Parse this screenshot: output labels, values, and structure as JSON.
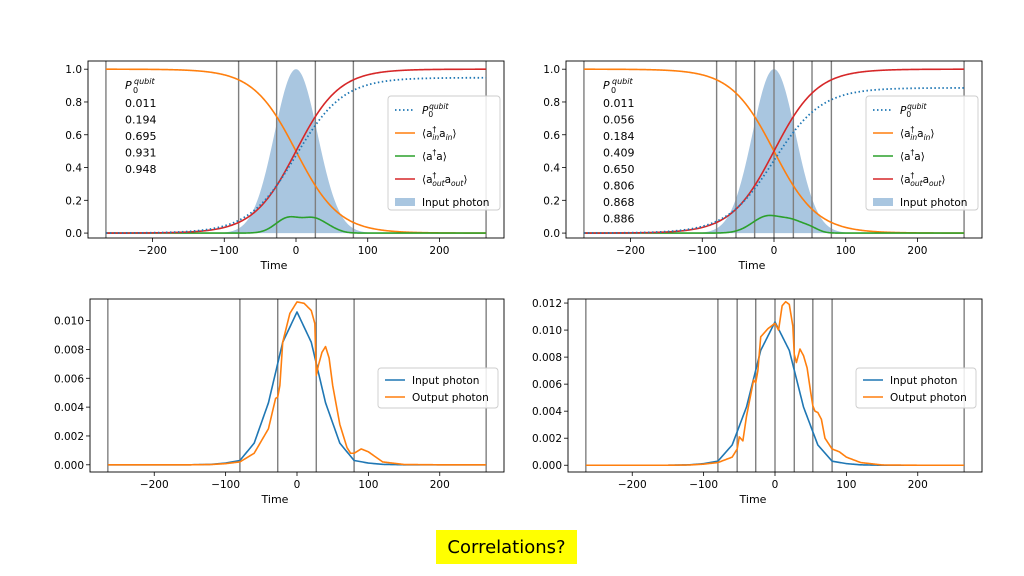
{
  "caption": "Correlations?",
  "colors": {
    "blue": "#1f77b4",
    "orange": "#ff7f0e",
    "green": "#2ca02c",
    "red": "#d62728",
    "fill": "#a9c6e0",
    "grid_line": "#7f7f7f"
  },
  "chart_data": [
    {
      "type": "line",
      "panel": "top-left",
      "xlabel": "Time",
      "ylabel": "",
      "xlim": [
        -290,
        290
      ],
      "ylim": [
        -0.03,
        1.05
      ],
      "xticks": [
        -200,
        -100,
        0,
        100,
        200
      ],
      "xtick_labels": [
        "−200",
        "−100",
        "0",
        "100",
        "200"
      ],
      "yticks": [
        0.0,
        0.2,
        0.4,
        0.6,
        0.8,
        1.0
      ],
      "ytick_labels": [
        "0.0",
        "0.2",
        "0.4",
        "0.6",
        "0.8",
        "1.0"
      ],
      "vlines": [
        -265,
        -80,
        -27,
        27,
        80,
        265
      ],
      "pulse": {
        "center": 0,
        "sigma": 30,
        "peak": 1.0
      },
      "series": [
        {
          "name": "P_0^qubit",
          "style": "dotted",
          "kind": "out",
          "scale": 0.948,
          "k": 33
        },
        {
          "name": "<a_in^dag a_in>",
          "style": "solid",
          "kind": "in",
          "k": 30
        },
        {
          "name": "<a^dag a>",
          "style": "solid",
          "kind": "cav",
          "peaks": [
            [
              -10,
              18,
              0.095
            ],
            [
              24,
              14,
              0.07
            ],
            [
              45,
              14,
              0.03
            ]
          ]
        },
        {
          "name": "<a_out^dag a_out>",
          "style": "solid",
          "kind": "out",
          "scale": 1.0,
          "k": 30
        }
      ],
      "annotations": {
        "header": "P",
        "values": [
          "0.011",
          "0.194",
          "0.695",
          "0.931",
          "0.948"
        ]
      },
      "legend": {
        "location": "center-right",
        "entries": [
          {
            "kind": "math",
            "main": "P",
            "sub": "0",
            "sup": "qubit"
          },
          {
            "kind": "math",
            "main": "⟨a",
            "sup": "†",
            "mid": "a",
            "sub2": "in",
            "sub1": "in"
          },
          {
            "kind": "math",
            "main": "⟨a",
            "sup": "†",
            "mid": "a"
          },
          {
            "kind": "math",
            "main": "⟨a",
            "sup": "†",
            "mid": "a",
            "sub2": "out",
            "sub1": "out"
          },
          {
            "kind": "text",
            "text": "Input photon"
          }
        ]
      }
    },
    {
      "type": "line",
      "panel": "top-right",
      "xlabel": "Time",
      "ylabel": "",
      "xlim": [
        -290,
        290
      ],
      "ylim": [
        -0.03,
        1.05
      ],
      "xticks": [
        -200,
        -100,
        0,
        100,
        200
      ],
      "xtick_labels": [
        "−200",
        "−100",
        "0",
        "100",
        "200"
      ],
      "yticks": [
        0.0,
        0.2,
        0.4,
        0.6,
        0.8,
        1.0
      ],
      "ytick_labels": [
        "0.0",
        "0.2",
        "0.4",
        "0.6",
        "0.8",
        "1.0"
      ],
      "vlines": [
        -265,
        -80,
        -53,
        -27,
        0,
        27,
        53,
        80,
        265
      ],
      "pulse": {
        "center": 0,
        "sigma": 30,
        "peak": 1.0
      },
      "series": [
        {
          "name": "P_0^qubit",
          "style": "dotted",
          "kind": "out",
          "scale": 0.886,
          "k": 33
        },
        {
          "name": "<a_in^dag a_in>",
          "style": "solid",
          "kind": "in",
          "k": 30
        },
        {
          "name": "<a^dag a>",
          "style": "solid",
          "kind": "cav",
          "peaks": [
            [
              -8,
              22,
              0.105
            ],
            [
              27,
              14,
              0.05
            ],
            [
              50,
              12,
              0.03
            ]
          ]
        },
        {
          "name": "<a_out^dag a_out>",
          "style": "solid",
          "kind": "out",
          "scale": 1.0,
          "k": 30
        }
      ],
      "annotations": {
        "header": "P",
        "values": [
          "0.011",
          "0.056",
          "0.184",
          "0.409",
          "0.650",
          "0.806",
          "0.868",
          "0.886"
        ]
      },
      "legend": {
        "location": "center-right",
        "entries": [
          {
            "kind": "math",
            "main": "P",
            "sub": "0",
            "sup": "qubit"
          },
          {
            "kind": "math",
            "main": "⟨a",
            "sup": "†",
            "mid": "a",
            "sub2": "in",
            "sub1": "in"
          },
          {
            "kind": "math",
            "main": "⟨a",
            "sup": "†",
            "mid": "a"
          },
          {
            "kind": "math",
            "main": "⟨a",
            "sup": "†",
            "mid": "a",
            "sub2": "out",
            "sub1": "out"
          },
          {
            "kind": "text",
            "text": "Input photon"
          }
        ]
      }
    },
    {
      "type": "line",
      "panel": "bottom-left",
      "xlabel": "Time",
      "ylabel": "",
      "xlim": [
        -290,
        290
      ],
      "ylim": [
        -0.0005,
        0.0115
      ],
      "xticks": [
        -200,
        -100,
        0,
        100,
        200
      ],
      "xtick_labels": [
        "−200",
        "−100",
        "0",
        "100",
        "200"
      ],
      "yticks": [
        0.0,
        0.002,
        0.004,
        0.006,
        0.008,
        0.01
      ],
      "ytick_labels": [
        "0.000",
        "0.002",
        "0.004",
        "0.006",
        "0.008",
        "0.010"
      ],
      "vlines": [
        -265,
        -80,
        -27,
        27,
        80,
        265
      ],
      "series": [
        {
          "name": "Input photon",
          "color": "#1f77b4",
          "x": [
            -265,
            -200,
            -150,
            -120,
            -100,
            -80,
            -60,
            -40,
            -20,
            0,
            20,
            40,
            60,
            80,
            100,
            120,
            150,
            200,
            265
          ],
          "y": [
            0,
            0,
            0,
            3e-05,
            0.00012,
            0.0003,
            0.0015,
            0.0043,
            0.0085,
            0.0106,
            0.0085,
            0.0043,
            0.0015,
            0.0003,
            0.00012,
            3e-05,
            0,
            0,
            0
          ]
        },
        {
          "name": "Output photon",
          "color": "#ff7f0e",
          "x": [
            -265,
            -200,
            -150,
            -120,
            -100,
            -80,
            -60,
            -40,
            -30,
            -27,
            -24,
            -20,
            -10,
            0,
            10,
            20,
            25,
            27,
            30,
            35,
            40,
            45,
            50,
            60,
            70,
            75,
            80,
            90,
            100,
            120,
            150,
            200,
            265
          ],
          "y": [
            0,
            0,
            0,
            2e-05,
            8e-05,
            0.0002,
            0.0008,
            0.0025,
            0.0046,
            0.0047,
            0.0055,
            0.0085,
            0.0105,
            0.0113,
            0.0112,
            0.0107,
            0.0098,
            0.0062,
            0.0069,
            0.0078,
            0.0082,
            0.0074,
            0.0055,
            0.0028,
            0.0012,
            0.0008,
            0.0008,
            0.0011,
            0.0009,
            0.0002,
            2e-05,
            0,
            0
          ]
        }
      ],
      "legend": {
        "location": "center-right",
        "entries": [
          {
            "kind": "text",
            "text": "Input photon"
          },
          {
            "kind": "text",
            "text": "Output photon"
          }
        ]
      }
    },
    {
      "type": "line",
      "panel": "bottom-right",
      "xlabel": "Time",
      "ylabel": "",
      "xlim": [
        -290,
        290
      ],
      "ylim": [
        -0.0005,
        0.0123
      ],
      "xticks": [
        -200,
        -100,
        0,
        100,
        200
      ],
      "xtick_labels": [
        "−200",
        "−100",
        "0",
        "100",
        "200"
      ],
      "yticks": [
        0.0,
        0.002,
        0.004,
        0.006,
        0.008,
        0.01,
        0.012
      ],
      "ytick_labels": [
        "0.000",
        "0.002",
        "0.004",
        "0.006",
        "0.008",
        "0.010",
        "0.012"
      ],
      "vlines": [
        -265,
        -80,
        -53,
        -27,
        0,
        27,
        53,
        80,
        265
      ],
      "series": [
        {
          "name": "Input photon",
          "color": "#1f77b4",
          "x": [
            -265,
            -200,
            -150,
            -120,
            -100,
            -80,
            -60,
            -40,
            -20,
            0,
            20,
            40,
            60,
            80,
            100,
            120,
            150,
            200,
            265
          ],
          "y": [
            0,
            0,
            0,
            3e-05,
            0.00012,
            0.0003,
            0.0015,
            0.0043,
            0.0085,
            0.0106,
            0.0085,
            0.0043,
            0.0015,
            0.0003,
            0.00012,
            3e-05,
            0,
            0,
            0
          ]
        },
        {
          "name": "Output photon",
          "color": "#ff7f0e",
          "x": [
            -265,
            -200,
            -150,
            -120,
            -100,
            -80,
            -60,
            -53,
            -50,
            -45,
            -40,
            -30,
            -27,
            -24,
            -20,
            -10,
            0,
            5,
            10,
            15,
            20,
            25,
            27,
            30,
            35,
            40,
            45,
            50,
            53,
            56,
            60,
            65,
            70,
            75,
            80,
            90,
            100,
            120,
            150,
            200,
            265
          ],
          "y": [
            0,
            0,
            0,
            2e-05,
            8e-05,
            0.0002,
            0.0006,
            0.0012,
            0.0021,
            0.0018,
            0.0036,
            0.0063,
            0.0061,
            0.007,
            0.0095,
            0.0101,
            0.0105,
            0.01,
            0.0118,
            0.0121,
            0.0119,
            0.0103,
            0.0082,
            0.0076,
            0.0086,
            0.0081,
            0.0072,
            0.0054,
            0.0044,
            0.004,
            0.0039,
            0.0034,
            0.002,
            0.0016,
            0.0012,
            0.001,
            0.0006,
            0.0002,
            2e-05,
            0,
            0
          ]
        }
      ],
      "legend": {
        "location": "center-right",
        "entries": [
          {
            "kind": "text",
            "text": "Input photon"
          },
          {
            "kind": "text",
            "text": "Output photon"
          }
        ]
      }
    }
  ]
}
